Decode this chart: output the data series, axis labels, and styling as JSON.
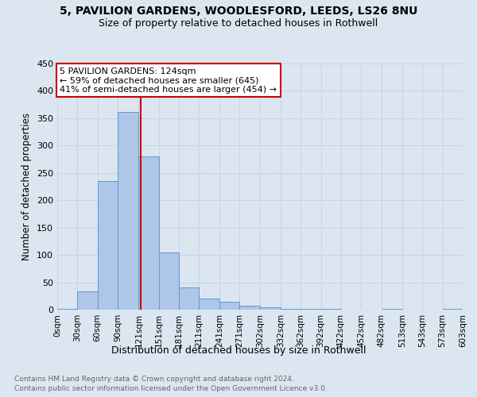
{
  "title1": "5, PAVILION GARDENS, WOODLESFORD, LEEDS, LS26 8NU",
  "title2": "Size of property relative to detached houses in Rothwell",
  "xlabel": "Distribution of detached houses by size in Rothwell",
  "ylabel": "Number of detached properties",
  "footnote1": "Contains HM Land Registry data © Crown copyright and database right 2024.",
  "footnote2": "Contains public sector information licensed under the Open Government Licence v3.0.",
  "bar_left_edges": [
    0,
    30,
    60,
    90,
    121,
    151,
    181,
    211,
    241,
    271,
    302,
    332,
    362,
    392,
    422,
    452,
    482,
    513,
    543,
    573
  ],
  "bar_heights": [
    2,
    34,
    235,
    362,
    280,
    105,
    40,
    20,
    15,
    7,
    5,
    1,
    1,
    1,
    0,
    0,
    1,
    0,
    0,
    1
  ],
  "bar_color": "#aec6e8",
  "bar_edgecolor": "#5b9bd5",
  "vline_x": 124,
  "vline_color": "#cc0000",
  "annotation_text": "5 PAVILION GARDENS: 124sqm\n← 59% of detached houses are smaller (645)\n41% of semi-detached houses are larger (454) →",
  "annotation_box_edgecolor": "#cc0000",
  "annotation_box_facecolor": "#ffffff",
  "ylim": [
    0,
    450
  ],
  "yticks": [
    0,
    50,
    100,
    150,
    200,
    250,
    300,
    350,
    400,
    450
  ],
  "xtick_labels": [
    "0sqm",
    "30sqm",
    "60sqm",
    "90sqm",
    "121sqm",
    "151sqm",
    "181sqm",
    "211sqm",
    "241sqm",
    "271sqm",
    "302sqm",
    "332sqm",
    "362sqm",
    "392sqm",
    "422sqm",
    "452sqm",
    "482sqm",
    "513sqm",
    "543sqm",
    "573sqm",
    "603sqm"
  ],
  "xtick_positions": [
    0,
    30,
    60,
    90,
    121,
    151,
    181,
    211,
    241,
    271,
    302,
    332,
    362,
    392,
    422,
    452,
    482,
    513,
    543,
    573,
    603
  ],
  "grid_color": "#c8d4e8",
  "background_color": "#dce6f0",
  "plot_bg_color": "#dce6f0"
}
